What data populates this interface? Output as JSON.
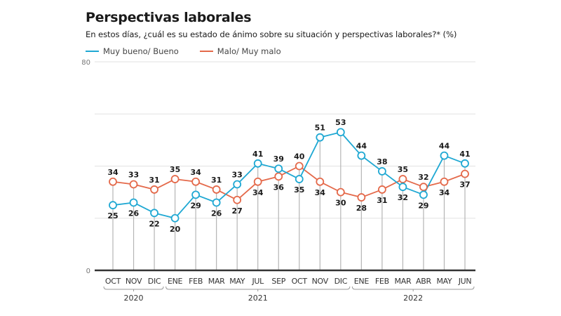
{
  "title": "Perspectivas laborales",
  "subtitle": "En estos días, ¿cuál es su estado de ánimo sobre su situación y perspectivas laborales?*  (%)",
  "colors": {
    "good": "#1fa8d3",
    "bad": "#e4694a",
    "grid": "#e2e2e2",
    "stem": "#b5b5b5",
    "axis": "#333333",
    "text": "#1a1a1a"
  },
  "chart_data": {
    "type": "line",
    "title": "Perspectivas laborales",
    "subtitle": "En estos días, ¿cuál es su estado de ánimo sobre su situación y perspectivas laborales?* (%)",
    "xlabel": "",
    "ylabel": "",
    "ylim": [
      0,
      80
    ],
    "yticks": [
      0,
      80
    ],
    "gridlines": [
      20,
      40,
      60,
      80
    ],
    "grid": true,
    "legend_position": "top-left",
    "categories": [
      "OCT",
      "NOV",
      "DIC",
      "ENE",
      "FEB",
      "MAR",
      "MAY",
      "JUL",
      "SEP",
      "OCT",
      "NOV",
      "DIC",
      "ENE",
      "FEB",
      "MAR",
      "ABR",
      "MAY",
      "JUN"
    ],
    "year_groups": [
      {
        "label": "2020",
        "start": 0,
        "end": 2
      },
      {
        "label": "2021",
        "start": 3,
        "end": 11
      },
      {
        "label": "2022",
        "start": 12,
        "end": 17
      }
    ],
    "series": [
      {
        "name": "Muy bueno/ Bueno",
        "color": "#1fa8d3",
        "values": [
          25,
          26,
          22,
          20,
          29,
          26,
          33,
          41,
          39,
          35,
          51,
          53,
          44,
          38,
          32,
          29,
          44,
          41
        ]
      },
      {
        "name": "Malo/ Muy malo",
        "color": "#e4694a",
        "values": [
          34,
          33,
          31,
          35,
          34,
          31,
          27,
          34,
          36,
          40,
          34,
          30,
          28,
          31,
          35,
          32,
          34,
          37
        ]
      }
    ]
  }
}
